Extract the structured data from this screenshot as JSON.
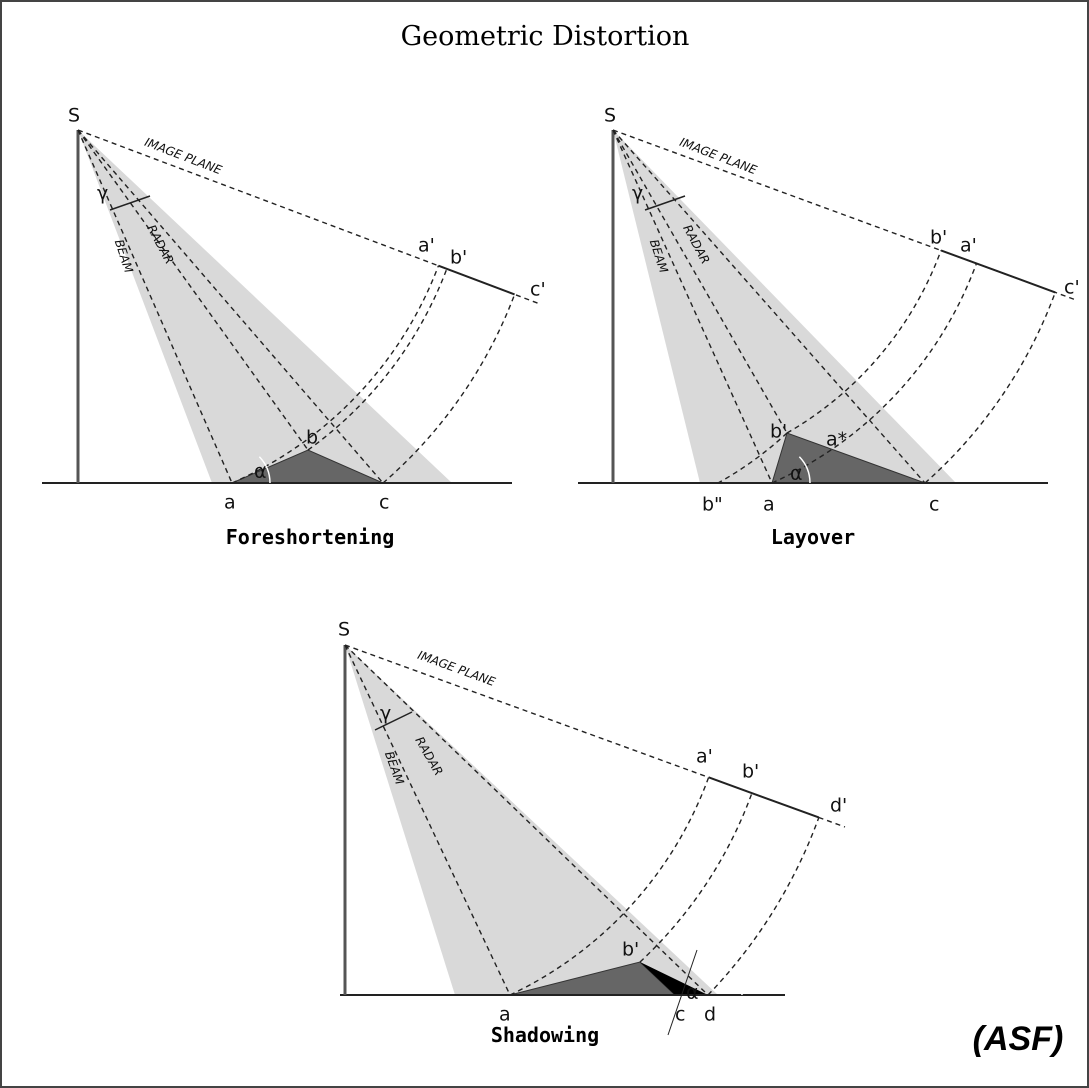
{
  "title": "Geometric Distortion",
  "panels": [
    {
      "caption": "Foreshortening",
      "labels": [
        "S",
        "IMAGE PLANE",
        "RADAR",
        "BEAM",
        "γ",
        "α",
        "a'",
        "b'",
        "c'",
        "b",
        "a",
        "c"
      ]
    },
    {
      "caption": "Layover",
      "labels": [
        "S",
        "IMAGE PLANE",
        "RADAR",
        "BEAM",
        "γ",
        "b'",
        "a'",
        "c'",
        "b'",
        "a*",
        "α",
        "b\"",
        "a",
        "c"
      ]
    },
    {
      "caption": "Shadowing",
      "labels": [
        "S",
        "IMAGE PLANE",
        "RADAR",
        "BEAM",
        "γ",
        "a'",
        "b'",
        "d'",
        "b'",
        "a",
        "c",
        "α",
        "d"
      ]
    }
  ],
  "credit": "(ASF)"
}
